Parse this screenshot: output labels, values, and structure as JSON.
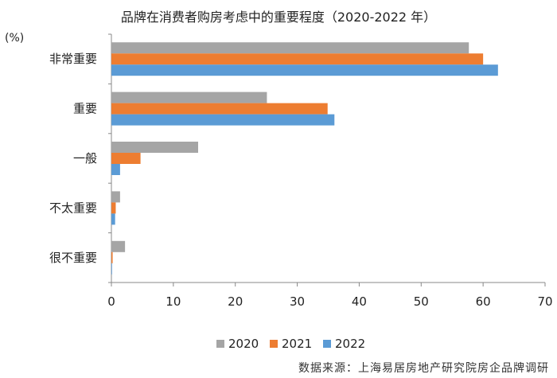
{
  "chart_data": {
    "type": "bar",
    "orientation": "horizontal",
    "title": "品牌在消费者购房考虑中的重要程度（2020-2022 年）",
    "unit_label": "(%)",
    "source": "数据来源：上海易居房地产研究院房企品牌调研",
    "categories": [
      "非常重要",
      "重要",
      "一般",
      "不太重要",
      "很不重要"
    ],
    "series": [
      {
        "name": "2020",
        "color": "#a5a5a5",
        "values": [
          57.7,
          25.1,
          14.0,
          1.4,
          2.2
        ]
      },
      {
        "name": "2021",
        "color": "#ed7d31",
        "values": [
          60.0,
          34.9,
          4.7,
          0.7,
          0.2
        ]
      },
      {
        "name": "2022",
        "color": "#5b9bd5",
        "values": [
          62.4,
          36.0,
          1.4,
          0.6,
          0.1
        ]
      }
    ],
    "xlim": [
      0,
      70
    ],
    "xticks": [
      "0",
      "10",
      "20",
      "30",
      "40",
      "50",
      "60",
      "70"
    ],
    "grid": false,
    "legend_position": "bottom"
  }
}
